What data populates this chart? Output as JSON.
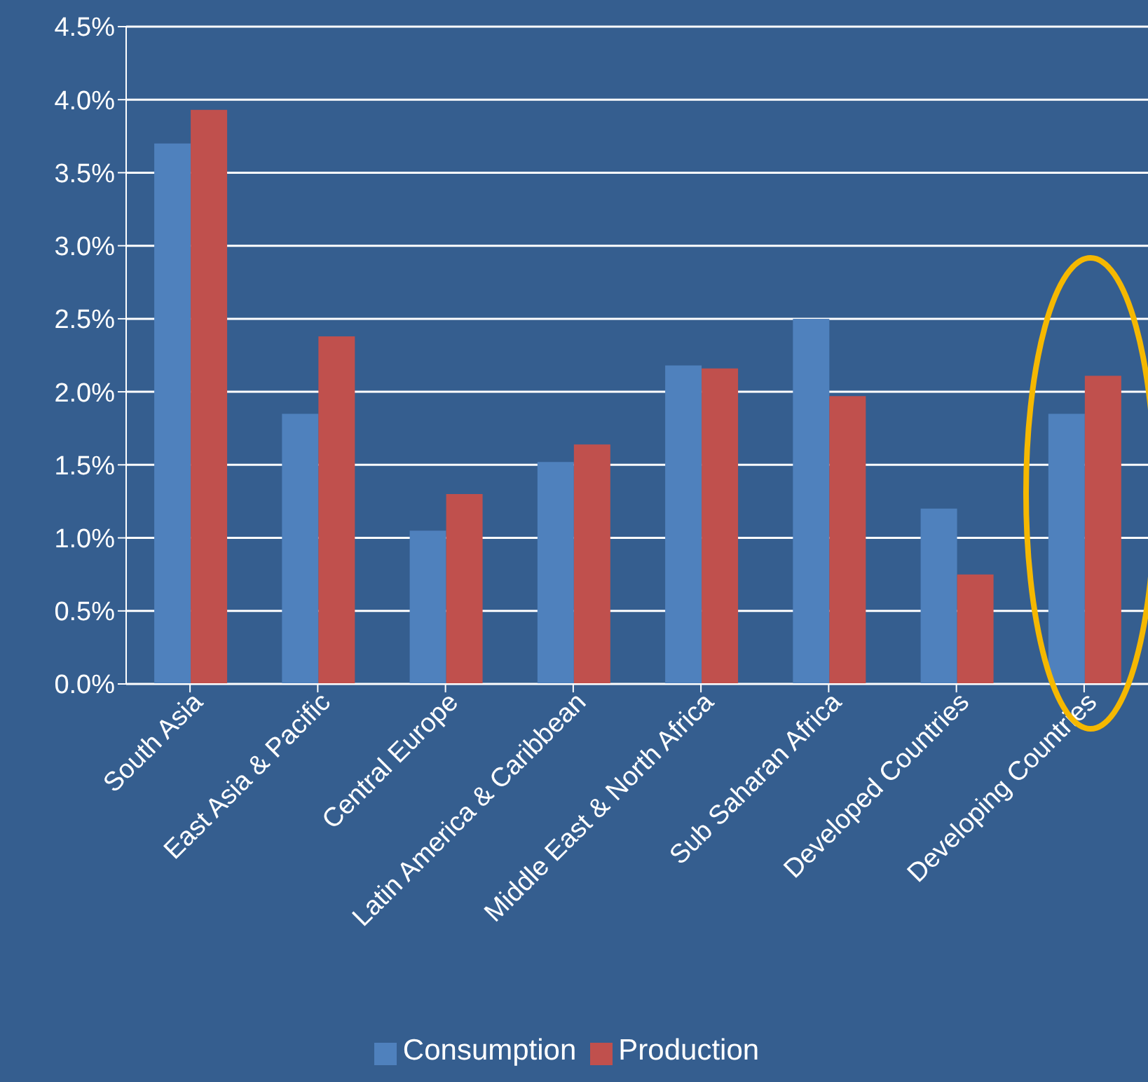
{
  "chart_data": {
    "type": "bar",
    "categories": [
      "South Asia",
      "East Asia & Pacific",
      "Central Europe",
      "Latin America & Caribbean",
      "Middle East & North Africa",
      "Sub Saharan Africa",
      "Developed Countries",
      "Developing Countries"
    ],
    "series": [
      {
        "name": "Consumption",
        "color": "#4f81bd",
        "values": [
          3.7,
          1.85,
          1.05,
          1.52,
          2.18,
          2.5,
          1.2,
          1.85
        ]
      },
      {
        "name": "Production",
        "color": "#c0504d",
        "values": [
          3.93,
          2.38,
          1.3,
          1.64,
          2.16,
          1.97,
          0.75,
          2.11
        ]
      }
    ],
    "ylim": [
      0,
      4.5
    ],
    "yticks": [
      {
        "value": 0,
        "label": "0.0%"
      },
      {
        "value": 0.5,
        "label": "0.5%"
      },
      {
        "value": 1,
        "label": "1.0%"
      },
      {
        "value": 1.5,
        "label": "1.5%"
      },
      {
        "value": 2,
        "label": "2.0%"
      },
      {
        "value": 2.5,
        "label": "2.5%"
      },
      {
        "value": 3,
        "label": "3.0%"
      },
      {
        "value": 3.5,
        "label": "3.5%"
      },
      {
        "value": 4,
        "label": "4.0%"
      },
      {
        "value": 4.5,
        "label": "4.5%"
      }
    ],
    "grid": "y",
    "legend": "bottom"
  }
}
